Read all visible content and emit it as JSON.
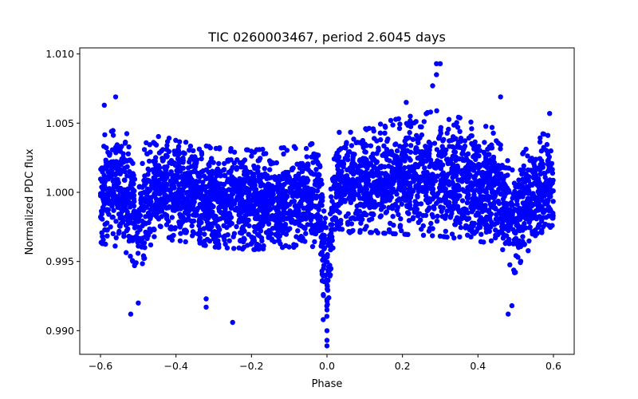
{
  "chart_data": {
    "type": "scatter",
    "title": "TIC 0260003467, period 2.6045 days",
    "xlabel": "Phase",
    "ylabel": "Normalized PDC flux",
    "xlim": [
      -0.655,
      0.655
    ],
    "ylim": [
      0.98829,
      1.01044
    ],
    "xticks": [
      -0.6,
      -0.4,
      -0.2,
      0.0,
      0.2,
      0.4,
      0.6
    ],
    "xtick_labels": [
      "−0.6",
      "−0.4",
      "−0.2",
      "0.0",
      "0.2",
      "0.4",
      "0.6"
    ],
    "yticks": [
      0.99,
      0.995,
      1.0,
      1.005,
      1.01
    ],
    "ytick_labels": [
      "0.990",
      "0.995",
      "1.000",
      "1.005",
      "1.010"
    ],
    "grid": false,
    "marker_color": "#0000ff",
    "series": [
      {
        "name": "flux",
        "x_range": [
          -0.6,
          0.6
        ],
        "band_profile": [
          {
            "x": -0.6,
            "center": 1.0,
            "halfwidth": 0.0032
          },
          {
            "x": -0.55,
            "center": 1.0002,
            "halfwidth": 0.0036
          },
          {
            "x": -0.52,
            "center": 0.9995,
            "halfwidth": 0.0036
          },
          {
            "x": -0.5,
            "center": 0.9975,
            "halfwidth": 0.003
          },
          {
            "x": -0.48,
            "center": 0.9995,
            "halfwidth": 0.0035
          },
          {
            "x": -0.45,
            "center": 1.0002,
            "halfwidth": 0.0032
          },
          {
            "x": -0.4,
            "center": 1.0,
            "halfwidth": 0.003
          },
          {
            "x": -0.3,
            "center": 0.9995,
            "halfwidth": 0.003
          },
          {
            "x": -0.2,
            "center": 0.9993,
            "halfwidth": 0.003
          },
          {
            "x": -0.1,
            "center": 0.9995,
            "halfwidth": 0.003
          },
          {
            "x": -0.02,
            "center": 0.9996,
            "halfwidth": 0.0032
          },
          {
            "x": 0.0,
            "center": 0.993,
            "halfwidth": 0.003
          },
          {
            "x": 0.02,
            "center": 1.0005,
            "halfwidth": 0.003
          },
          {
            "x": 0.1,
            "center": 1.0008,
            "halfwidth": 0.0032
          },
          {
            "x": 0.2,
            "center": 1.001,
            "halfwidth": 0.0035
          },
          {
            "x": 0.3,
            "center": 1.0012,
            "halfwidth": 0.0038
          },
          {
            "x": 0.4,
            "center": 1.0005,
            "halfwidth": 0.0035
          },
          {
            "x": 0.46,
            "center": 1.0002,
            "halfwidth": 0.0035
          },
          {
            "x": 0.48,
            "center": 0.999,
            "halfwidth": 0.0035
          },
          {
            "x": 0.5,
            "center": 0.9975,
            "halfwidth": 0.003
          },
          {
            "x": 0.52,
            "center": 0.9995,
            "halfwidth": 0.0035
          },
          {
            "x": 0.56,
            "center": 1.0002,
            "halfwidth": 0.0033
          },
          {
            "x": 0.6,
            "center": 1.0,
            "halfwidth": 0.0032
          }
        ],
        "notable_points": [
          {
            "x": 0.29,
            "y": 1.0093
          },
          {
            "x": 0.3,
            "y": 1.0093
          },
          {
            "x": 0.29,
            "y": 1.0085
          },
          {
            "x": 0.28,
            "y": 1.0077
          },
          {
            "x": 0.21,
            "y": 1.0065
          },
          {
            "x": -0.59,
            "y": 1.0063
          },
          {
            "x": -0.56,
            "y": 1.0069
          },
          {
            "x": 0.46,
            "y": 1.0069
          },
          {
            "x": 0.0,
            "y": 0.9889
          },
          {
            "x": 0.0,
            "y": 0.9893
          },
          {
            "x": 0.0,
            "y": 0.99
          },
          {
            "x": -0.01,
            "y": 0.9908
          },
          {
            "x": -0.25,
            "y": 0.9906
          },
          {
            "x": -0.52,
            "y": 0.9912
          },
          {
            "x": -0.5,
            "y": 0.992
          },
          {
            "x": 0.48,
            "y": 0.9912
          },
          {
            "x": 0.49,
            "y": 0.9918
          },
          {
            "x": -0.32,
            "y": 0.9917
          },
          {
            "x": -0.32,
            "y": 0.9923
          },
          {
            "x": 0.59,
            "y": 1.0057
          }
        ]
      }
    ]
  }
}
